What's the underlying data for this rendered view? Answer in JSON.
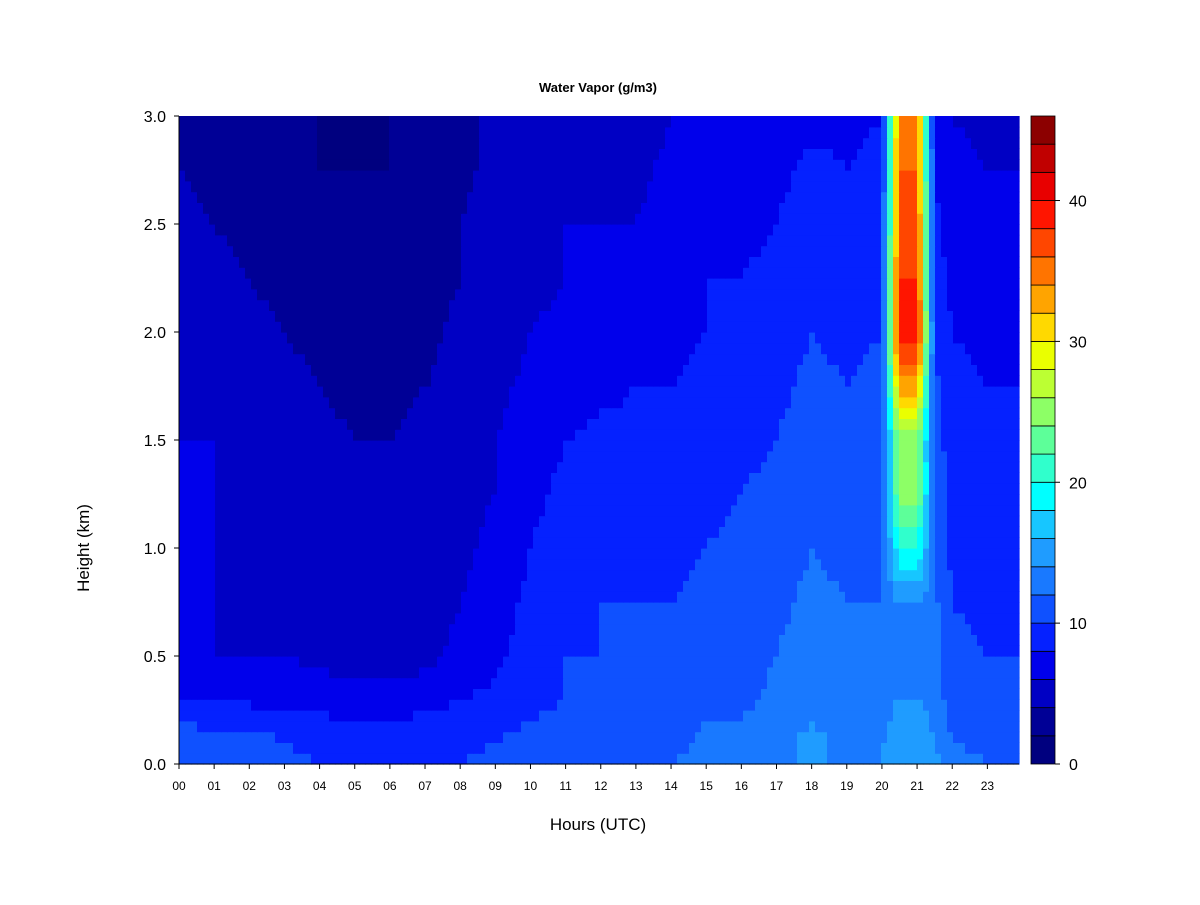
{
  "chart_data": {
    "type": "heatmap",
    "title": "Water Vapor (g/m3)",
    "xlabel": "Hours (UTC)",
    "ylabel": "Height (km)",
    "xlim": [
      0,
      23.9
    ],
    "ylim": [
      0,
      3.0
    ],
    "x_ticks": [
      "00",
      "01",
      "02",
      "03",
      "04",
      "05",
      "06",
      "07",
      "08",
      "09",
      "10",
      "11",
      "12",
      "13",
      "14",
      "15",
      "16",
      "17",
      "18",
      "19",
      "20",
      "21",
      "22",
      "23"
    ],
    "y_ticks": [
      "0.0",
      "0.5",
      "1.0",
      "1.5",
      "2.0",
      "2.5",
      "3.0"
    ],
    "colorbar": {
      "range": [
        0,
        44
      ],
      "step": 2,
      "ticks": [
        "0",
        "10",
        "20",
        "30",
        "40"
      ],
      "colors": [
        "#00007f",
        "#000096",
        "#0000c4",
        "#0000eb",
        "#0521ff",
        "#0f51ff",
        "#1979ff",
        "#1f9cff",
        "#17c6ff",
        "#00ffff",
        "#30ffcc",
        "#5dff99",
        "#8dff66",
        "#bcff33",
        "#eaff00",
        "#ffd900",
        "#ffa400",
        "#ff7400",
        "#ff4600",
        "#ff1500",
        "#e80000",
        "#c00000",
        "#8c0000"
      ]
    },
    "heights_km": [
      0.0,
      0.1,
      0.2,
      0.3,
      0.5,
      0.75,
      1.0,
      1.25,
      1.5,
      1.75,
      2.0,
      2.25,
      2.5,
      2.75,
      3.0
    ],
    "hours_utc": [
      0,
      1,
      2,
      3,
      4,
      5,
      6,
      7,
      8,
      9,
      10,
      11,
      12,
      13,
      14,
      15,
      16,
      17,
      18,
      19,
      20,
      20.5,
      21,
      21.5,
      22,
      23,
      23.9
    ],
    "values": [
      [
        11,
        11,
        11.5,
        10.5,
        10,
        9.5,
        9.5,
        9.5,
        10,
        10.5,
        11,
        11,
        11,
        11.5,
        12,
        12.5,
        13,
        13.5,
        14.5,
        13.5,
        14,
        16,
        16,
        15,
        13,
        12,
        12
      ],
      [
        11,
        10.5,
        11,
        10,
        9.5,
        9,
        9,
        9,
        9.5,
        10,
        10.5,
        11,
        11,
        11,
        11.5,
        12.5,
        12.5,
        13.5,
        14.5,
        13.5,
        14,
        15.5,
        15.5,
        14,
        12,
        11.5,
        11.5
      ],
      [
        10,
        9.5,
        9.5,
        9,
        8.5,
        8,
        8,
        8.5,
        9,
        9.5,
        10,
        10.5,
        11,
        11,
        11,
        12,
        12,
        13,
        14,
        13,
        13,
        15,
        15,
        13.5,
        11.5,
        11,
        11
      ],
      [
        8,
        7.5,
        7.5,
        7.5,
        7,
        7,
        7,
        7,
        8,
        8.5,
        9.5,
        10,
        10,
        10.5,
        10.5,
        11.5,
        11.5,
        12.5,
        13.5,
        12.5,
        13,
        14,
        14,
        13,
        11,
        10.5,
        10.5
      ],
      [
        6.5,
        6,
        6,
        6,
        5.5,
        5,
        5,
        5.5,
        6.5,
        7.5,
        9,
        10,
        10,
        10,
        10,
        11,
        11,
        12,
        13,
        12,
        12.5,
        12,
        12,
        12.5,
        10.5,
        10,
        10
      ],
      [
        6.5,
        6,
        5.5,
        5.5,
        5,
        4.5,
        4.5,
        5,
        6,
        7,
        8.5,
        9.5,
        10,
        10,
        10,
        10.5,
        11,
        11.5,
        12.5,
        12,
        12,
        14,
        14,
        12.5,
        10,
        9.5,
        9.5
      ],
      [
        6.5,
        6,
        5.5,
        5,
        4.5,
        4,
        4,
        4.5,
        5.5,
        6.5,
        8,
        9,
        9.5,
        9.5,
        9.5,
        10,
        10.5,
        11,
        12,
        11.5,
        12,
        20,
        20,
        12,
        9.5,
        9,
        9
      ],
      [
        6.5,
        6,
        5.5,
        5,
        4.5,
        4,
        4,
        4.5,
        5.5,
        6,
        7.5,
        8.5,
        9,
        9,
        9,
        9.5,
        10,
        10.5,
        11.5,
        11,
        11.5,
        25,
        25,
        11.5,
        9,
        8.5,
        8.5
      ],
      [
        6,
        6,
        5.5,
        5,
        4.5,
        4,
        4,
        4.5,
        5,
        6,
        7,
        8,
        8.5,
        8.5,
        9,
        9,
        9.5,
        10,
        11,
        10.5,
        11,
        25,
        25,
        11,
        9,
        8.5,
        8.5
      ],
      [
        6,
        5.5,
        5,
        4.5,
        4,
        3.5,
        3.5,
        4,
        4.5,
        5.5,
        6.5,
        7,
        7.5,
        8,
        8,
        8.5,
        9,
        9.5,
        10.5,
        10,
        10.5,
        33,
        33,
        10.5,
        8.5,
        8,
        8
      ],
      [
        5.5,
        5,
        4.5,
        4,
        3.5,
        3,
        3,
        3.5,
        4.5,
        5,
        6,
        6.5,
        7,
        7,
        7.5,
        8,
        8.5,
        9,
        10,
        9.5,
        10,
        40,
        40,
        9.5,
        8,
        7.5,
        7.5
      ],
      [
        5,
        4.5,
        4,
        3.5,
        3,
        2.5,
        2.5,
        3,
        4,
        5,
        5.5,
        6,
        6.5,
        6.5,
        7.5,
        8,
        8,
        8.5,
        9.5,
        9,
        9.5,
        38,
        38,
        9,
        7.5,
        7,
        7
      ],
      [
        4.5,
        4,
        3.5,
        3,
        2.5,
        2.5,
        2.5,
        3,
        4,
        5,
        5.5,
        6,
        6,
        6,
        7,
        7.5,
        7.5,
        8,
        9,
        8.5,
        9,
        37,
        37,
        8.5,
        7,
        6.5,
        6.5
      ],
      [
        4,
        3.5,
        3,
        2.5,
        2,
        2,
        2,
        2.5,
        3.5,
        4.5,
        5,
        5.5,
        5.5,
        5.5,
        6.5,
        7,
        7,
        7.5,
        8.5,
        8,
        8.5,
        36,
        36,
        8,
        6.5,
        6,
        6
      ],
      [
        3.5,
        3,
        2.5,
        2,
        2,
        1.5,
        2,
        2.5,
        3.5,
        4.5,
        5,
        5,
        5,
        5,
        6,
        6.5,
        6.5,
        7,
        7.5,
        7.5,
        8,
        35,
        35,
        7.5,
        6,
        5.5,
        5.5
      ]
    ]
  }
}
